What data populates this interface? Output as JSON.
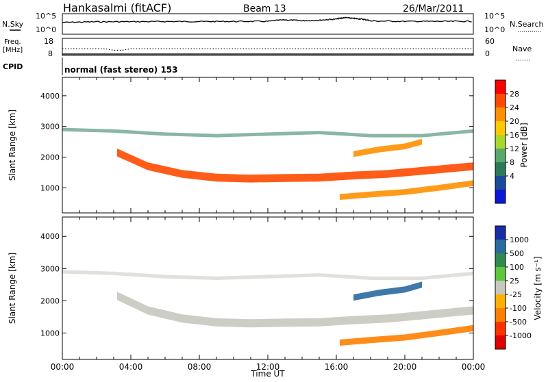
{
  "header": {
    "station": "Hankasalmi (fitACF)",
    "beam": "Beam 13",
    "date": "26/Mar/2011"
  },
  "noise_panel": {
    "left_label": "N.Sky",
    "left_ticks": [
      "10^5",
      "10^0"
    ],
    "right_label": "N.Search",
    "right_ticks": [
      "10^5",
      "10^0"
    ]
  },
  "freq_panel": {
    "left_label_line1": "Freq.",
    "left_label_line2": "[MHz]",
    "left_ticks": [
      "18",
      "8"
    ],
    "right_label": "Nave",
    "right_ticks": [
      "60",
      "0"
    ]
  },
  "cpid_panel": {
    "label": "CPID",
    "value": "normal (fast stereo) 153"
  },
  "power_panel": {
    "ylabel": "Slant Range [km]",
    "yticks": [
      "4000",
      "3000",
      "2000",
      "1000"
    ],
    "colorbar_label": "Power [dB]",
    "colorbar_ticks": [
      "28",
      "24",
      "20",
      "16",
      "12",
      "8",
      "4"
    ],
    "colorbar_colors": [
      "#ff0000",
      "#ff4a00",
      "#ff9000",
      "#ffc800",
      "#a8d82c",
      "#5aa86a",
      "#2a7a5a",
      "#1a4a9a",
      "#0a18d8"
    ]
  },
  "velocity_panel": {
    "ylabel": "Slant Range [km]",
    "yticks": [
      "4000",
      "3000",
      "2000",
      "1000"
    ],
    "colorbar_label": "Velocity [m s⁻¹]",
    "colorbar_ticks": [
      "1000",
      "500",
      "100",
      "25",
      "-25",
      "-100",
      "-500",
      "-1000"
    ],
    "colorbar_colors": [
      "#1a2ea8",
      "#2a6aa0",
      "#2e8a4e",
      "#5ec83a",
      "#c8c8c0",
      "#ffb000",
      "#ff8000",
      "#ff3000",
      "#e00000"
    ]
  },
  "xaxis": {
    "ticks": [
      "00:00",
      "04:00",
      "08:00",
      "12:00",
      "16:00",
      "20:00",
      "00:00"
    ],
    "label": "Time UT"
  },
  "chart_data": [
    {
      "type": "line",
      "title": "Hankasalmi (fitACF) Beam 13 26/Mar/2011",
      "xlabel": "Time UT",
      "ylabel": "N.Sky",
      "xlim": [
        0,
        24
      ],
      "note_scale": "log",
      "series": [
        {
          "name": "N.Sky",
          "x": [
            0,
            2,
            4,
            6,
            8,
            10,
            12,
            13,
            14,
            15,
            16,
            16.5,
            17,
            17.5,
            18,
            20,
            22,
            24
          ],
          "y": [
            1000,
            1500,
            1600,
            1800,
            1800,
            1900,
            2000,
            5000,
            3000,
            4000,
            8000,
            20000,
            12000,
            8000,
            2500,
            2000,
            2000,
            2000
          ]
        }
      ]
    },
    {
      "type": "line",
      "ylabel": "Freq. [MHz]",
      "ylim": [
        8,
        18
      ],
      "xlim": [
        0,
        24
      ],
      "series": [
        {
          "name": "Freq.",
          "x": [
            0,
            2.5,
            3,
            3.5,
            4,
            24
          ],
          "y": [
            12,
            12,
            11,
            11,
            12,
            12
          ]
        }
      ]
    },
    {
      "type": "heatmap",
      "title": "Power",
      "ylabel": "Slant Range [km]",
      "colorbar_label": "Power [dB]",
      "xlim": [
        0,
        24
      ],
      "ylim": [
        180,
        4600
      ],
      "zlim": [
        0,
        30
      ],
      "bands": [
        {
          "x": [
            3.2,
            5,
            7,
            9,
            11,
            13,
            15,
            17,
            19,
            21,
            23,
            24
          ],
          "y": [
            2150,
            1700,
            1450,
            1330,
            1300,
            1320,
            1330,
            1400,
            1450,
            1550,
            1650,
            1700
          ],
          "z": 26
        },
        {
          "x": [
            16.2,
            18,
            20,
            22,
            24
          ],
          "y": [
            700,
            780,
            860,
            1000,
            1150
          ],
          "z": 24
        },
        {
          "x": [
            17,
            18.5,
            20,
            21
          ],
          "y": [
            2100,
            2250,
            2350,
            2500
          ],
          "z": 22
        },
        {
          "x": [
            0,
            3,
            6,
            9,
            12,
            15,
            18,
            21,
            24
          ],
          "y": [
            2900,
            2850,
            2750,
            2700,
            2750,
            2800,
            2700,
            2700,
            2850
          ],
          "z": 6
        }
      ]
    },
    {
      "type": "heatmap",
      "title": "Velocity",
      "ylabel": "Slant Range [km]",
      "colorbar_label": "Velocity [m s⁻¹]",
      "xlim": [
        0,
        24
      ],
      "ylim": [
        180,
        4600
      ],
      "zlim": [
        -1000,
        1000
      ],
      "bands": [
        {
          "x": [
            3.2,
            5,
            7,
            9,
            11,
            13,
            15,
            17,
            19,
            21,
            23,
            24
          ],
          "y": [
            2150,
            1700,
            1450,
            1330,
            1300,
            1320,
            1330,
            1400,
            1450,
            1550,
            1650,
            1700
          ],
          "z": 0
        },
        {
          "x": [
            16.2,
            18,
            20,
            22,
            24
          ],
          "y": [
            700,
            780,
            860,
            1000,
            1150
          ],
          "z": -150
        },
        {
          "x": [
            17,
            18.5,
            20,
            21
          ],
          "y": [
            2100,
            2250,
            2350,
            2500
          ],
          "z": 150
        },
        {
          "x": [
            0,
            3,
            6,
            9,
            12,
            15,
            18,
            21,
            24
          ],
          "y": [
            2900,
            2850,
            2750,
            2700,
            2750,
            2800,
            2700,
            2700,
            2850
          ],
          "z": 0
        }
      ]
    }
  ]
}
